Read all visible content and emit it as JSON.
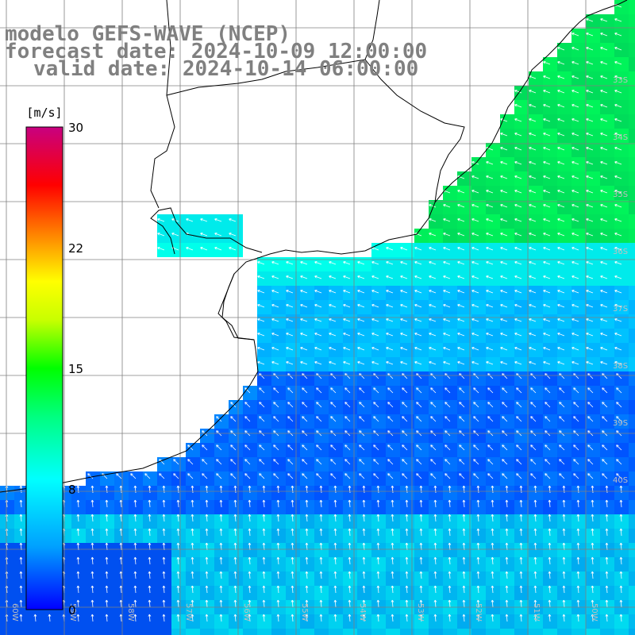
{
  "titles": {
    "line1": "modelo GEFS-WAVE (NCEP)",
    "line2": "forecast date: 2024-10-09 12:00:00",
    "line3": "valid date: 2024-10-14 06:00:00"
  },
  "colorbar": {
    "unit": "[m/s]",
    "ticks": [
      "30",
      "22",
      "15",
      "8",
      "0"
    ],
    "colors": [
      "#0000ff",
      "#00a0ff",
      "#00ffff",
      "#00ff80",
      "#00ff00",
      "#c8ff00",
      "#ffff00",
      "#ff8000",
      "#ff0000",
      "#c80080"
    ]
  },
  "lat_labels": [
    "33S",
    "34S",
    "35S",
    "36S",
    "37S",
    "38S",
    "39S",
    "40S"
  ],
  "lon_labels": [
    "60W",
    "59W",
    "58W",
    "57W",
    "56W",
    "55W",
    "54W",
    "53W",
    "52W",
    "51W",
    "50W"
  ],
  "colors": {
    "grid": "#808080",
    "coast": "#000000",
    "title_text": "#808080",
    "arrow": "#ffffff"
  }
}
